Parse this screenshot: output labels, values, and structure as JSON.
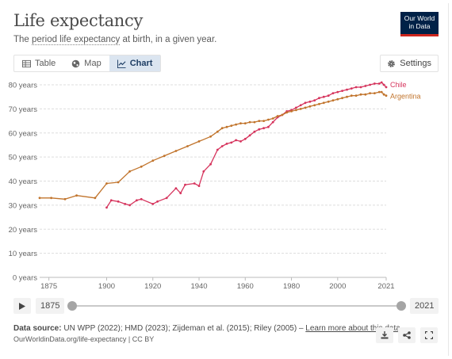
{
  "header": {
    "title": "Life expectancy",
    "subtitle_link": "period life expectancy",
    "subtitle_pre": "The ",
    "subtitle_post": " at birth, in a given year.",
    "logo_line1": "Our World",
    "logo_line2": "in Data"
  },
  "tabs": [
    {
      "label": "Table",
      "icon": "table-icon"
    },
    {
      "label": "Map",
      "icon": "globe-icon"
    },
    {
      "label": "Chart",
      "icon": "line-chart-icon",
      "active": true
    }
  ],
  "settings_label": "Settings",
  "timeline": {
    "start_year": "1875",
    "end_year": "2021",
    "start_fraction": 0,
    "end_fraction": 1
  },
  "footer": {
    "source_label": "Data source:",
    "source_text": " UN WPP (2022); HMD (2023); Zijdeman et al. (2015); Riley (2005) – ",
    "learn_more": "Learn more about this data",
    "url_line": "OurWorldinData.org/life-expectancy | CC BY"
  },
  "colors": {
    "chile": "#d6345d",
    "argentina": "#c1742c",
    "grid": "#dddddd",
    "accent": "#1d3d63"
  },
  "chart_data": {
    "type": "line",
    "xlim": [
      1871,
      2021
    ],
    "ylim": [
      0,
      80
    ],
    "x_ticks": [
      1875,
      1900,
      1920,
      1940,
      1960,
      1980,
      2000,
      2021
    ],
    "y_ticks": [
      0,
      10,
      20,
      30,
      40,
      50,
      60,
      70,
      80
    ],
    "y_tick_labels": [
      "0 years",
      "10 years",
      "20 years",
      "30 years",
      "40 years",
      "50 years",
      "60 years",
      "70 years",
      "80 years"
    ],
    "grid": true,
    "series": [
      {
        "name": "Chile",
        "color": "#d6345d",
        "x": [
          1900,
          1902,
          1905,
          1908,
          1910,
          1913,
          1915,
          1920,
          1922,
          1926,
          1930,
          1932,
          1934,
          1938,
          1940,
          1942,
          1945,
          1948,
          1950,
          1952,
          1954,
          1956,
          1958,
          1960,
          1962,
          1964,
          1966,
          1968,
          1970,
          1972,
          1974,
          1976,
          1978,
          1980,
          1982,
          1984,
          1986,
          1988,
          1990,
          1992,
          1994,
          1996,
          1998,
          2000,
          2002,
          2004,
          2006,
          2008,
          2010,
          2012,
          2014,
          2016,
          2018,
          2019,
          2020,
          2021
        ],
        "y": [
          29.0,
          32.0,
          31.5,
          30.5,
          30.0,
          32.0,
          32.5,
          30.5,
          31.5,
          33.0,
          37.0,
          35.0,
          38.5,
          39.0,
          38.0,
          44.0,
          47.0,
          53.0,
          54.5,
          55.5,
          56.0,
          57.0,
          56.5,
          57.5,
          59.0,
          60.5,
          61.5,
          62.0,
          62.5,
          64.5,
          66.5,
          67.5,
          69.0,
          69.5,
          70.5,
          71.5,
          72.5,
          73.0,
          73.5,
          74.5,
          75.0,
          75.5,
          76.5,
          77.0,
          77.5,
          78.0,
          78.5,
          79.0,
          79.0,
          79.5,
          80.0,
          80.5,
          80.5,
          81.0,
          80.0,
          79.0
        ]
      },
      {
        "name": "Argentina",
        "color": "#c1742c",
        "x": [
          1871,
          1876,
          1882,
          1887,
          1895,
          1900,
          1905,
          1910,
          1915,
          1920,
          1925,
          1930,
          1935,
          1940,
          1945,
          1948,
          1950,
          1952,
          1954,
          1956,
          1958,
          1960,
          1962,
          1964,
          1966,
          1968,
          1970,
          1972,
          1974,
          1976,
          1978,
          1980,
          1982,
          1984,
          1986,
          1988,
          1990,
          1992,
          1994,
          1996,
          1998,
          2000,
          2002,
          2004,
          2006,
          2008,
          2010,
          2012,
          2014,
          2016,
          2018,
          2019,
          2020,
          2021
        ],
        "y": [
          33.0,
          33.0,
          32.5,
          34.0,
          33.0,
          39.0,
          39.5,
          44.0,
          46.0,
          48.5,
          50.5,
          52.5,
          54.5,
          56.5,
          58.5,
          60.5,
          62.0,
          62.5,
          63.0,
          63.5,
          64.0,
          64.0,
          64.5,
          64.5,
          65.0,
          65.0,
          65.5,
          66.0,
          67.0,
          67.5,
          68.5,
          69.0,
          69.5,
          70.0,
          70.5,
          71.0,
          71.5,
          72.0,
          72.5,
          73.0,
          73.5,
          74.0,
          74.5,
          75.0,
          75.5,
          75.5,
          76.0,
          76.0,
          76.5,
          76.5,
          77.0,
          77.0,
          76.0,
          75.5
        ]
      }
    ]
  }
}
